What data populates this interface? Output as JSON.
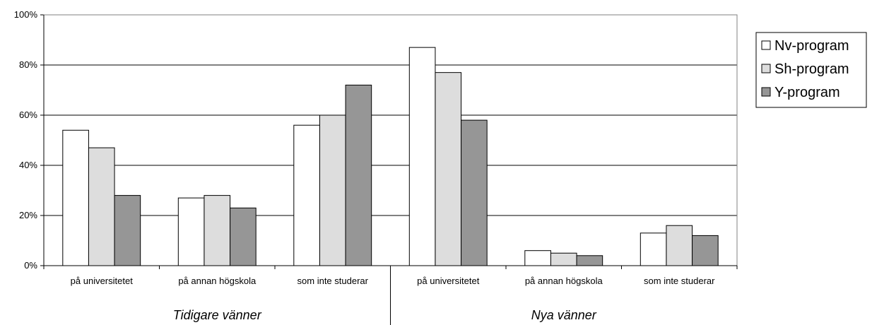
{
  "chart_data": {
    "type": "bar",
    "categories": [
      "på universitetet",
      "på annan högskola",
      "som inte studerar",
      "på universitetet",
      "på annan högskola",
      "som inte studerar"
    ],
    "groups": [
      {
        "label": "Tidigare vänner",
        "category_indices": [
          0,
          1,
          2
        ]
      },
      {
        "label": "Nya vänner",
        "category_indices": [
          3,
          4,
          5
        ]
      }
    ],
    "series": [
      {
        "name": "Nv-program",
        "color": "#ffffff",
        "values": [
          54,
          27,
          56,
          87,
          6,
          13
        ]
      },
      {
        "name": "Sh-program",
        "color": "#dddddd",
        "values": [
          47,
          28,
          60,
          77,
          5,
          16
        ]
      },
      {
        "name": "Y-program",
        "color": "#969696",
        "values": [
          28,
          23,
          72,
          58,
          4,
          12
        ]
      }
    ],
    "y_ticks": [
      "0%",
      "20%",
      "40%",
      "60%",
      "80%",
      "100%"
    ],
    "ylim": [
      0,
      100
    ],
    "grid": true,
    "legend_position": "right",
    "xlabel": "",
    "ylabel": "",
    "title": ""
  }
}
